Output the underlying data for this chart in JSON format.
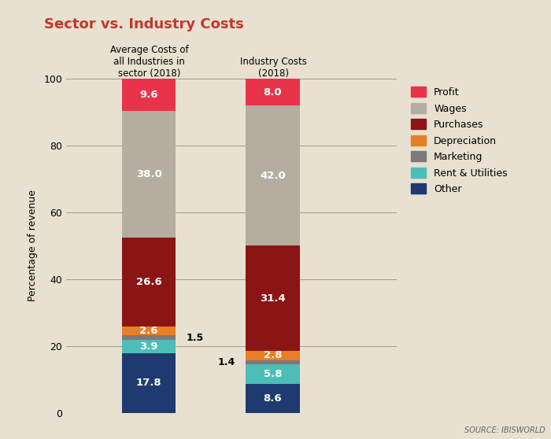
{
  "title": "Sector vs. Industry Costs",
  "title_color": "#c0392b",
  "background_color": "#e8e0d0",
  "ylabel": "Percentage of revenue",
  "ylim": [
    0,
    100
  ],
  "bar_width": 0.13,
  "bar_positions": [
    0.28,
    0.58
  ],
  "bar_labels": [
    "Average Costs of\nall Industries in\nsector (2018)",
    "Industry Costs\n(2018)"
  ],
  "categories": [
    "Other",
    "Rent & Utilities",
    "Marketing",
    "Depreciation",
    "Purchases",
    "Wages",
    "Profit"
  ],
  "colors": [
    "#1f3a6e",
    "#4dbdb8",
    "#7a7a7a",
    "#e87e25",
    "#8b1515",
    "#b5ada0",
    "#e8334a"
  ],
  "bar1_values": [
    17.8,
    3.9,
    1.5,
    2.6,
    26.6,
    38.0,
    9.6
  ],
  "bar2_values": [
    8.6,
    5.8,
    1.4,
    2.8,
    31.4,
    42.0,
    8.0
  ],
  "bar1_labels": [
    "17.8",
    "3.9",
    "1.5",
    "2.6",
    "26.6",
    "38.0",
    "9.6"
  ],
  "bar2_labels": [
    "8.6",
    "5.8",
    "1.4",
    "2.8",
    "31.4",
    "42.0",
    "8.0"
  ],
  "bar1_outside": [
    false,
    false,
    true,
    false,
    false,
    false,
    false
  ],
  "bar2_outside": [
    false,
    false,
    true,
    false,
    false,
    false,
    false
  ],
  "source_text": "SOURCE: IBISWORLD",
  "legend_labels": [
    "Profit",
    "Wages",
    "Purchases",
    "Depreciation",
    "Marketing",
    "Rent & Utilities",
    "Other"
  ],
  "legend_colors": [
    "#e8334a",
    "#b5ada0",
    "#8b1515",
    "#e87e25",
    "#7a7a7a",
    "#4dbdb8",
    "#1f3a6e"
  ],
  "grid_color": "#a0998a",
  "grid_linewidth": 0.7
}
